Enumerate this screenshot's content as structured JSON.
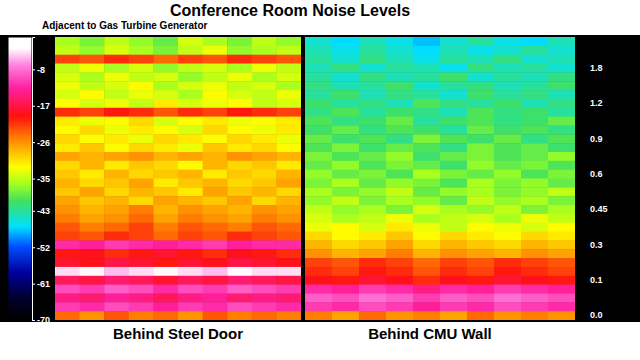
{
  "chart_data": {
    "type": "heatmap",
    "title": "Conference Room Noise Levels",
    "subtitle": "Adjacent to Gas Turbine Generator",
    "tick_labels": "y",
    "y_categories": [
      null,
      null,
      null,
      "1.8",
      null,
      null,
      null,
      "1.2",
      null,
      null,
      null,
      "0.9",
      null,
      null,
      null,
      "0.6",
      null,
      null,
      null,
      "0.45",
      null,
      null,
      null,
      "0.3",
      null,
      null,
      null,
      "0.1",
      null,
      null,
      null,
      "0.0"
    ],
    "color_range": [
      -70,
      0
    ],
    "color_ticks": [
      -8,
      -17,
      -26,
      -35,
      -43,
      -52,
      -61,
      -70
    ],
    "panels": [
      {
        "label": "Behind Steel Door",
        "cells": [
          [
            -36,
            -38,
            -35,
            -37,
            -39,
            -34,
            -36,
            -38,
            -35,
            -37
          ],
          [
            -35,
            -37,
            -34,
            -36,
            -38,
            -35,
            -33,
            -37,
            -36,
            -35
          ],
          [
            -22,
            -23,
            -21,
            -22,
            -24,
            -22,
            -23,
            -21,
            -22,
            -23
          ],
          [
            -35,
            -33,
            -36,
            -34,
            -37,
            -35,
            -34,
            -36,
            -33,
            -35
          ],
          [
            -34,
            -36,
            -33,
            -35,
            -34,
            -37,
            -35,
            -33,
            -36,
            -34
          ],
          [
            -33,
            -35,
            -34,
            -32,
            -36,
            -34,
            -33,
            -35,
            -34,
            -36
          ],
          [
            -34,
            -32,
            -35,
            -33,
            -34,
            -36,
            -32,
            -34,
            -35,
            -33
          ],
          [
            -32,
            -34,
            -33,
            -35,
            -31,
            -34,
            -33,
            -32,
            -35,
            -34
          ],
          [
            -21,
            -22,
            -20,
            -21,
            -23,
            -21,
            -22,
            -20,
            -21,
            -22
          ],
          [
            -31,
            -33,
            -32,
            -30,
            -34,
            -32,
            -31,
            -33,
            -32,
            -31
          ],
          [
            -32,
            -30,
            -33,
            -31,
            -32,
            -34,
            -30,
            -32,
            -33,
            -31
          ],
          [
            -30,
            -32,
            -31,
            -33,
            -30,
            -31,
            -32,
            -30,
            -31,
            -33
          ],
          [
            -31,
            -29,
            -32,
            -30,
            -31,
            -33,
            -29,
            -31,
            -30,
            -32
          ],
          [
            -27,
            -28,
            -27,
            -26,
            -28,
            -27,
            -28,
            -26,
            -27,
            -28
          ],
          [
            -30,
            -28,
            -31,
            -29,
            -30,
            -32,
            -28,
            -30,
            -29,
            -31
          ],
          [
            -29,
            -31,
            -28,
            -30,
            -29,
            -28,
            -31,
            -29,
            -30,
            -28
          ],
          [
            -28,
            -30,
            -29,
            -27,
            -31,
            -29,
            -28,
            -30,
            -29,
            -27
          ],
          [
            -29,
            -27,
            -30,
            -28,
            -29,
            -31,
            -27,
            -29,
            -28,
            -30
          ],
          [
            -27,
            -29,
            -28,
            -30,
            -27,
            -28,
            -29,
            -27,
            -30,
            -28
          ],
          [
            -26,
            -28,
            -27,
            -25,
            -28,
            -26,
            -27,
            -28,
            -26,
            -27
          ],
          [
            -25,
            -27,
            -26,
            -24,
            -27,
            -25,
            -26,
            -27,
            -25,
            -26
          ],
          [
            -23,
            -25,
            -24,
            -22,
            -25,
            -23,
            -24,
            -25,
            -23,
            -24
          ],
          [
            -22,
            -23,
            -21,
            -22,
            -24,
            -22,
            -23,
            -21,
            -22,
            -23
          ],
          [
            -12,
            -13,
            -11,
            -12,
            -13,
            -12,
            -11,
            -13,
            -12,
            -12
          ],
          [
            -20,
            -19,
            -21,
            -20,
            -18,
            -20,
            -21,
            -19,
            -20,
            -21
          ],
          [
            -18,
            -19,
            -17,
            -18,
            -20,
            -18,
            -19,
            -17,
            -18,
            -19
          ],
          [
            -4,
            -3,
            -5,
            -4,
            -3,
            -4,
            -5,
            -3,
            -4,
            -4
          ],
          [
            -16,
            -17,
            -15,
            -16,
            -18,
            -16,
            -17,
            -15,
            -16,
            -17
          ],
          [
            -10,
            -11,
            -9,
            -10,
            -12,
            -10,
            -11,
            -9,
            -10,
            -11
          ],
          [
            -14,
            -15,
            -13,
            -14,
            -16,
            -14,
            -13,
            -15,
            -14,
            -15
          ],
          [
            -11,
            -12,
            -10,
            -11,
            -13,
            -11,
            -12,
            -10,
            -11,
            -12
          ],
          [
            -24,
            -26,
            -23,
            -25,
            -24,
            -26,
            -23,
            -25,
            -24,
            -25
          ]
        ]
      },
      {
        "label": "Behind CMU Wall",
        "cells": [
          [
            -45,
            -47,
            -44,
            -46,
            -48,
            -45,
            -43,
            -46,
            -47,
            -44
          ],
          [
            -44,
            -46,
            -43,
            -45,
            -47,
            -44,
            -46,
            -45,
            -43,
            -45
          ],
          [
            -43,
            -45,
            -42,
            -44,
            -46,
            -43,
            -44,
            -42,
            -45,
            -44
          ],
          [
            -44,
            -42,
            -45,
            -43,
            -44,
            -46,
            -42,
            -44,
            -43,
            -45
          ],
          [
            -43,
            -45,
            -42,
            -44,
            -43,
            -41,
            -45,
            -43,
            -44,
            -42
          ],
          [
            -42,
            -44,
            -43,
            -41,
            -45,
            -43,
            -42,
            -44,
            -43,
            -41
          ],
          [
            -43,
            -41,
            -44,
            -42,
            -43,
            -45,
            -41,
            -43,
            -42,
            -44
          ],
          [
            -41,
            -43,
            -42,
            -44,
            -40,
            -42,
            -43,
            -41,
            -44,
            -42
          ],
          [
            -42,
            -40,
            -43,
            -41,
            -42,
            -44,
            -40,
            -42,
            -41,
            -43
          ],
          [
            -40,
            -42,
            -41,
            -39,
            -43,
            -41,
            -40,
            -42,
            -41,
            -39
          ],
          [
            -41,
            -39,
            -42,
            -40,
            -41,
            -43,
            -39,
            -41,
            -40,
            -42
          ],
          [
            -39,
            -41,
            -40,
            -42,
            -38,
            -40,
            -41,
            -39,
            -42,
            -40
          ],
          [
            -40,
            -38,
            -41,
            -39,
            -40,
            -42,
            -38,
            -40,
            -39,
            -41
          ],
          [
            -38,
            -40,
            -39,
            -37,
            -41,
            -39,
            -38,
            -40,
            -39,
            -37
          ],
          [
            -39,
            -37,
            -40,
            -38,
            -39,
            -41,
            -37,
            -39,
            -38,
            -40
          ],
          [
            -37,
            -39,
            -38,
            -40,
            -36,
            -38,
            -39,
            -37,
            -40,
            -38
          ],
          [
            -38,
            -36,
            -39,
            -37,
            -38,
            -40,
            -36,
            -38,
            -37,
            -39
          ],
          [
            -36,
            -38,
            -37,
            -35,
            -39,
            -37,
            -36,
            -38,
            -37,
            -35
          ],
          [
            -37,
            -35,
            -38,
            -36,
            -37,
            -39,
            -35,
            -37,
            -36,
            -38
          ],
          [
            -35,
            -37,
            -36,
            -38,
            -34,
            -36,
            -37,
            -35,
            -38,
            -36
          ],
          [
            -34,
            -36,
            -35,
            -33,
            -36,
            -35,
            -34,
            -36,
            -33,
            -35
          ],
          [
            -33,
            -32,
            -34,
            -31,
            -33,
            -35,
            -32,
            -33,
            -34,
            -32
          ],
          [
            -30,
            -32,
            -31,
            -29,
            -32,
            -30,
            -31,
            -32,
            -30,
            -31
          ],
          [
            -28,
            -30,
            -29,
            -27,
            -30,
            -28,
            -29,
            -30,
            -28,
            -29
          ],
          [
            -26,
            -28,
            -27,
            -25,
            -28,
            -26,
            -27,
            -28,
            -26,
            -27
          ],
          [
            -22,
            -23,
            -21,
            -22,
            -24,
            -22,
            -23,
            -21,
            -22,
            -23
          ],
          [
            -21,
            -22,
            -20,
            -21,
            -23,
            -21,
            -22,
            -20,
            -21,
            -22
          ],
          [
            -19,
            -20,
            -18,
            -19,
            -21,
            -19,
            -20,
            -18,
            -19,
            -20
          ],
          [
            -12,
            -13,
            -11,
            -12,
            -14,
            -12,
            -13,
            -11,
            -12,
            -13
          ],
          [
            -9,
            -10,
            -8,
            -9,
            -11,
            -9,
            -10,
            -8,
            -9,
            -10
          ],
          [
            -11,
            -12,
            -10,
            -11,
            -13,
            -11,
            -12,
            -10,
            -11,
            -12
          ],
          [
            -25,
            -27,
            -24,
            -26,
            -25,
            -27,
            -24,
            -26,
            -25,
            -26
          ]
        ]
      }
    ]
  }
}
